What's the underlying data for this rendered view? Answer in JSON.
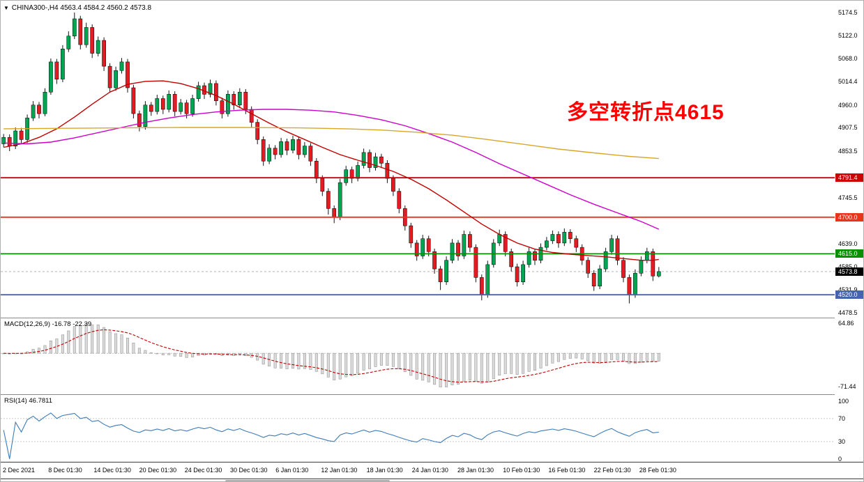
{
  "header": {
    "collapse_icon": "▼",
    "symbol": "CHINA300-,H4",
    "ohlc": "4563.4 4584.2 4560.2 4573.8"
  },
  "annotation": {
    "text": "多空转折点4615",
    "color": "#FF0000"
  },
  "indicators": {
    "macd": {
      "label": "MACD(12,26,9)",
      "values": "-16.78 -22.39",
      "axis_ticks": [
        64.86,
        -71.44
      ],
      "range": [
        -88,
        75
      ],
      "histogram_fill": "#DADADA",
      "histogram_stroke": "#999999",
      "signal_color": "#C00000"
    },
    "rsi": {
      "label": "RSI(14)",
      "value": "46.7811",
      "axis_ticks": [
        100,
        70,
        30,
        0
      ],
      "levels": [
        70,
        30
      ],
      "range": [
        -5,
        111
      ],
      "line_color": "#3E7BB6"
    }
  },
  "price_axis": {
    "ticks": [
      5174.5,
      5122.0,
      5068.0,
      5014.4,
      4960.0,
      4907.5,
      4853.5,
      4745.5,
      4639.0,
      4585.0,
      4531.9,
      4478.5
    ]
  },
  "time_axis": {
    "labels": [
      "2 Dec 2021",
      "8 Dec 01:30",
      "14 Dec 01:30",
      "20 Dec 01:30",
      "24 Dec 01:30",
      "30 Dec 01:30",
      "6 Jan 01:30",
      "12 Jan 01:30",
      "18 Jan 01:30",
      "24 Jan 01:30",
      "28 Jan 01:30",
      "10 Feb 01:30",
      "16 Feb 01:30",
      "22 Feb 01:30",
      "28 Feb 01:30"
    ]
  },
  "chart_data": {
    "type": "candlestick",
    "symbol": "CHINA300-",
    "timeframe": "H4",
    "title": "CHINA300-,H4",
    "last_candle": {
      "open": 4563.4,
      "high": 4584.2,
      "low": 4560.2,
      "close": 4573.8
    },
    "current_price": 4573.8,
    "current_price_label": "4573.8",
    "price_range": [
      4467,
      5202
    ],
    "up_color": "#00A551",
    "down_color": "#E31B23",
    "wick_color": "#151515",
    "hlines": [
      {
        "price": 4791.4,
        "color": "#CE0000",
        "label": "4791.4"
      },
      {
        "price": 4700.0,
        "color": "#E8341C",
        "label": "4700.0"
      },
      {
        "price": 4615.0,
        "color": "#089000",
        "label": "4615.0"
      },
      {
        "price": 4520.0,
        "color": "#4664AD",
        "label": "4520.0"
      }
    ],
    "candles": [
      [
        4870,
        4893,
        4862,
        4885
      ],
      [
        4885,
        4892,
        4853,
        4865
      ],
      [
        4865,
        4908,
        4858,
        4900
      ],
      [
        4900,
        4907,
        4869,
        4880
      ],
      [
        4880,
        4938,
        4872,
        4930
      ],
      [
        4930,
        4969,
        4923,
        4960
      ],
      [
        4960,
        4967,
        4929,
        4940
      ],
      [
        4940,
        4999,
        4934,
        4990
      ],
      [
        4990,
        5068,
        4984,
        5060
      ],
      [
        5060,
        5067,
        5009,
        5020
      ],
      [
        5020,
        5099,
        5013,
        5090
      ],
      [
        5090,
        5131,
        5083,
        5120
      ],
      [
        5120,
        5174.5,
        5113,
        5160
      ],
      [
        5160,
        5167,
        5089,
        5100
      ],
      [
        5100,
        5151,
        5093,
        5140
      ],
      [
        5140,
        5147,
        5069,
        5080
      ],
      [
        5080,
        5119,
        5073,
        5110
      ],
      [
        5110,
        5117,
        5039,
        5050
      ],
      [
        5050,
        5057,
        4989,
        5000
      ],
      [
        5000,
        5049,
        4993,
        5040
      ],
      [
        5040,
        5069,
        5033,
        5060
      ],
      [
        5060,
        5067,
        4989,
        5000
      ],
      [
        5000,
        5007,
        4929,
        4940
      ],
      [
        4940,
        4947,
        4899,
        4910
      ],
      [
        4910,
        4969,
        4903,
        4960
      ],
      [
        4960,
        4967,
        4935,
        4945
      ],
      [
        4945,
        4984,
        4938,
        4975
      ],
      [
        4975,
        4982,
        4939,
        4950
      ],
      [
        4950,
        4994,
        4943,
        4985
      ],
      [
        4985,
        4992,
        4934,
        4945
      ],
      [
        4945,
        4974,
        4938,
        4965
      ],
      [
        4965,
        4972,
        4929,
        4940
      ],
      [
        4940,
        4984,
        4933,
        4975
      ],
      [
        4975,
        5014,
        4968,
        5005
      ],
      [
        5005,
        5012,
        4974,
        4985
      ],
      [
        4985,
        5019,
        4978,
        5010
      ],
      [
        5010,
        5017,
        4959,
        4970
      ],
      [
        4970,
        4977,
        4929,
        4940
      ],
      [
        4940,
        4994,
        4933,
        4985
      ],
      [
        4985,
        4992,
        4949,
        4960
      ],
      [
        4960,
        4999,
        4953,
        4990
      ],
      [
        4990,
        4997,
        4939,
        4950
      ],
      [
        4950,
        4957,
        4909,
        4920
      ],
      [
        4920,
        4927,
        4869,
        4880
      ],
      [
        4880,
        4887,
        4819,
        4830
      ],
      [
        4830,
        4869,
        4823,
        4860
      ],
      [
        4860,
        4867,
        4834,
        4845
      ],
      [
        4845,
        4884,
        4838,
        4875
      ],
      [
        4875,
        4882,
        4844,
        4855
      ],
      [
        4855,
        4889,
        4848,
        4880
      ],
      [
        4880,
        4887,
        4834,
        4845
      ],
      [
        4845,
        4874,
        4838,
        4865
      ],
      [
        4865,
        4872,
        4819,
        4830
      ],
      [
        4830,
        4837,
        4779,
        4790
      ],
      [
        4790,
        4797,
        4749,
        4760
      ],
      [
        4760,
        4767,
        4706,
        4720
      ],
      [
        4720,
        4727,
        4686,
        4700
      ],
      [
        4700,
        4789,
        4693,
        4780
      ],
      [
        4780,
        4819,
        4773,
        4810
      ],
      [
        4810,
        4817,
        4779,
        4790
      ],
      [
        4790,
        4829,
        4783,
        4820
      ],
      [
        4820,
        4859,
        4813,
        4850
      ],
      [
        4850,
        4857,
        4804,
        4815
      ],
      [
        4815,
        4849,
        4808,
        4840
      ],
      [
        4840,
        4847,
        4814,
        4825
      ],
      [
        4825,
        4832,
        4779,
        4790
      ],
      [
        4790,
        4797,
        4749,
        4760
      ],
      [
        4760,
        4767,
        4709,
        4720
      ],
      [
        4720,
        4727,
        4669,
        4680
      ],
      [
        4680,
        4687,
        4629,
        4640
      ],
      [
        4640,
        4647,
        4599,
        4610
      ],
      [
        4610,
        4659,
        4603,
        4650
      ],
      [
        4650,
        4657,
        4609,
        4620
      ],
      [
        4620,
        4627,
        4569,
        4580
      ],
      [
        4580,
        4587,
        4531,
        4550
      ],
      [
        4550,
        4609,
        4543,
        4600
      ],
      [
        4600,
        4649,
        4593,
        4640
      ],
      [
        4640,
        4647,
        4599,
        4610
      ],
      [
        4610,
        4669,
        4603,
        4660
      ],
      [
        4660,
        4667,
        4619,
        4630
      ],
      [
        4630,
        4637,
        4549,
        4560
      ],
      [
        4560,
        4567,
        4507,
        4520
      ],
      [
        4520,
        4599,
        4513,
        4590
      ],
      [
        4590,
        4649,
        4583,
        4640
      ],
      [
        4640,
        4671,
        4633,
        4660
      ],
      [
        4660,
        4667,
        4609,
        4620
      ],
      [
        4620,
        4627,
        4574,
        4585
      ],
      [
        4585,
        4592,
        4539,
        4550
      ],
      [
        4550,
        4599,
        4543,
        4590
      ],
      [
        4590,
        4629,
        4583,
        4620
      ],
      [
        4620,
        4627,
        4589,
        4600
      ],
      [
        4600,
        4639,
        4593,
        4630
      ],
      [
        4630,
        4654,
        4623,
        4645
      ],
      [
        4645,
        4669,
        4638,
        4660
      ],
      [
        4660,
        4667,
        4629,
        4640
      ],
      [
        4640,
        4674,
        4633,
        4665
      ],
      [
        4665,
        4672,
        4639,
        4650
      ],
      [
        4650,
        4657,
        4619,
        4630
      ],
      [
        4630,
        4637,
        4589,
        4600
      ],
      [
        4600,
        4607,
        4559,
        4570
      ],
      [
        4570,
        4577,
        4529,
        4540
      ],
      [
        4540,
        4589,
        4533,
        4580
      ],
      [
        4580,
        4629,
        4573,
        4620
      ],
      [
        4620,
        4659,
        4613,
        4650
      ],
      [
        4650,
        4657,
        4589,
        4600
      ],
      [
        4600,
        4607,
        4549,
        4560
      ],
      [
        4560,
        4567,
        4500,
        4520
      ],
      [
        4520,
        4579,
        4513,
        4570
      ],
      [
        4570,
        4609,
        4563,
        4600
      ],
      [
        4600,
        4629,
        4593,
        4620
      ],
      [
        4620,
        4627,
        4552,
        4563.4
      ],
      [
        4563.4,
        4584.2,
        4560.2,
        4573.8
      ]
    ],
    "moving_averages": [
      {
        "name": "fast-red",
        "color": "#C00000",
        "points": [
          [
            0,
            4862
          ],
          [
            3,
            4870
          ],
          [
            6,
            4885
          ],
          [
            9,
            4905
          ],
          [
            12,
            4932
          ],
          [
            15,
            4962
          ],
          [
            18,
            4990
          ],
          [
            21,
            5008
          ],
          [
            24,
            5015
          ],
          [
            27,
            5016
          ],
          [
            30,
            5010
          ],
          [
            33,
            4998
          ],
          [
            36,
            4982
          ],
          [
            39,
            4962
          ],
          [
            42,
            4940
          ],
          [
            45,
            4918
          ],
          [
            48,
            4898
          ],
          [
            51,
            4880
          ],
          [
            54,
            4862
          ],
          [
            57,
            4845
          ],
          [
            60,
            4832
          ],
          [
            63,
            4820
          ],
          [
            66,
            4806
          ],
          [
            69,
            4788
          ],
          [
            72,
            4766
          ],
          [
            75,
            4740
          ],
          [
            78,
            4712
          ],
          [
            81,
            4684
          ],
          [
            84,
            4660
          ],
          [
            87,
            4640
          ],
          [
            90,
            4626
          ],
          [
            93,
            4618
          ],
          [
            96,
            4614
          ],
          [
            99,
            4611
          ],
          [
            102,
            4608
          ],
          [
            105,
            4604
          ],
          [
            108,
            4600
          ],
          [
            110,
            4600
          ],
          [
            111,
            4602
          ]
        ]
      },
      {
        "name": "mid-magenta",
        "color": "#CC00CC",
        "points": [
          [
            0,
            4872
          ],
          [
            4,
            4870
          ],
          [
            8,
            4874
          ],
          [
            12,
            4884
          ],
          [
            16,
            4896
          ],
          [
            20,
            4908
          ],
          [
            24,
            4920
          ],
          [
            28,
            4930
          ],
          [
            32,
            4938
          ],
          [
            36,
            4944
          ],
          [
            40,
            4948
          ],
          [
            44,
            4950
          ],
          [
            48,
            4950
          ],
          [
            52,
            4948
          ],
          [
            56,
            4944
          ],
          [
            60,
            4936
          ],
          [
            64,
            4926
          ],
          [
            68,
            4912
          ],
          [
            72,
            4894
          ],
          [
            76,
            4874
          ],
          [
            80,
            4850
          ],
          [
            84,
            4824
          ],
          [
            88,
            4800
          ],
          [
            92,
            4776
          ],
          [
            96,
            4752
          ],
          [
            100,
            4730
          ],
          [
            104,
            4710
          ],
          [
            106,
            4700
          ],
          [
            108,
            4690
          ],
          [
            110,
            4678
          ],
          [
            111,
            4672
          ]
        ]
      },
      {
        "name": "slow-orange",
        "color": "#D9A627",
        "points": [
          [
            0,
            4905
          ],
          [
            10,
            4906
          ],
          [
            20,
            4907
          ],
          [
            30,
            4908
          ],
          [
            40,
            4908
          ],
          [
            50,
            4907
          ],
          [
            58,
            4905
          ],
          [
            64,
            4902
          ],
          [
            70,
            4897
          ],
          [
            76,
            4890
          ],
          [
            82,
            4880
          ],
          [
            88,
            4869
          ],
          [
            94,
            4858
          ],
          [
            100,
            4849
          ],
          [
            106,
            4841
          ],
          [
            111,
            4836
          ]
        ]
      }
    ]
  }
}
